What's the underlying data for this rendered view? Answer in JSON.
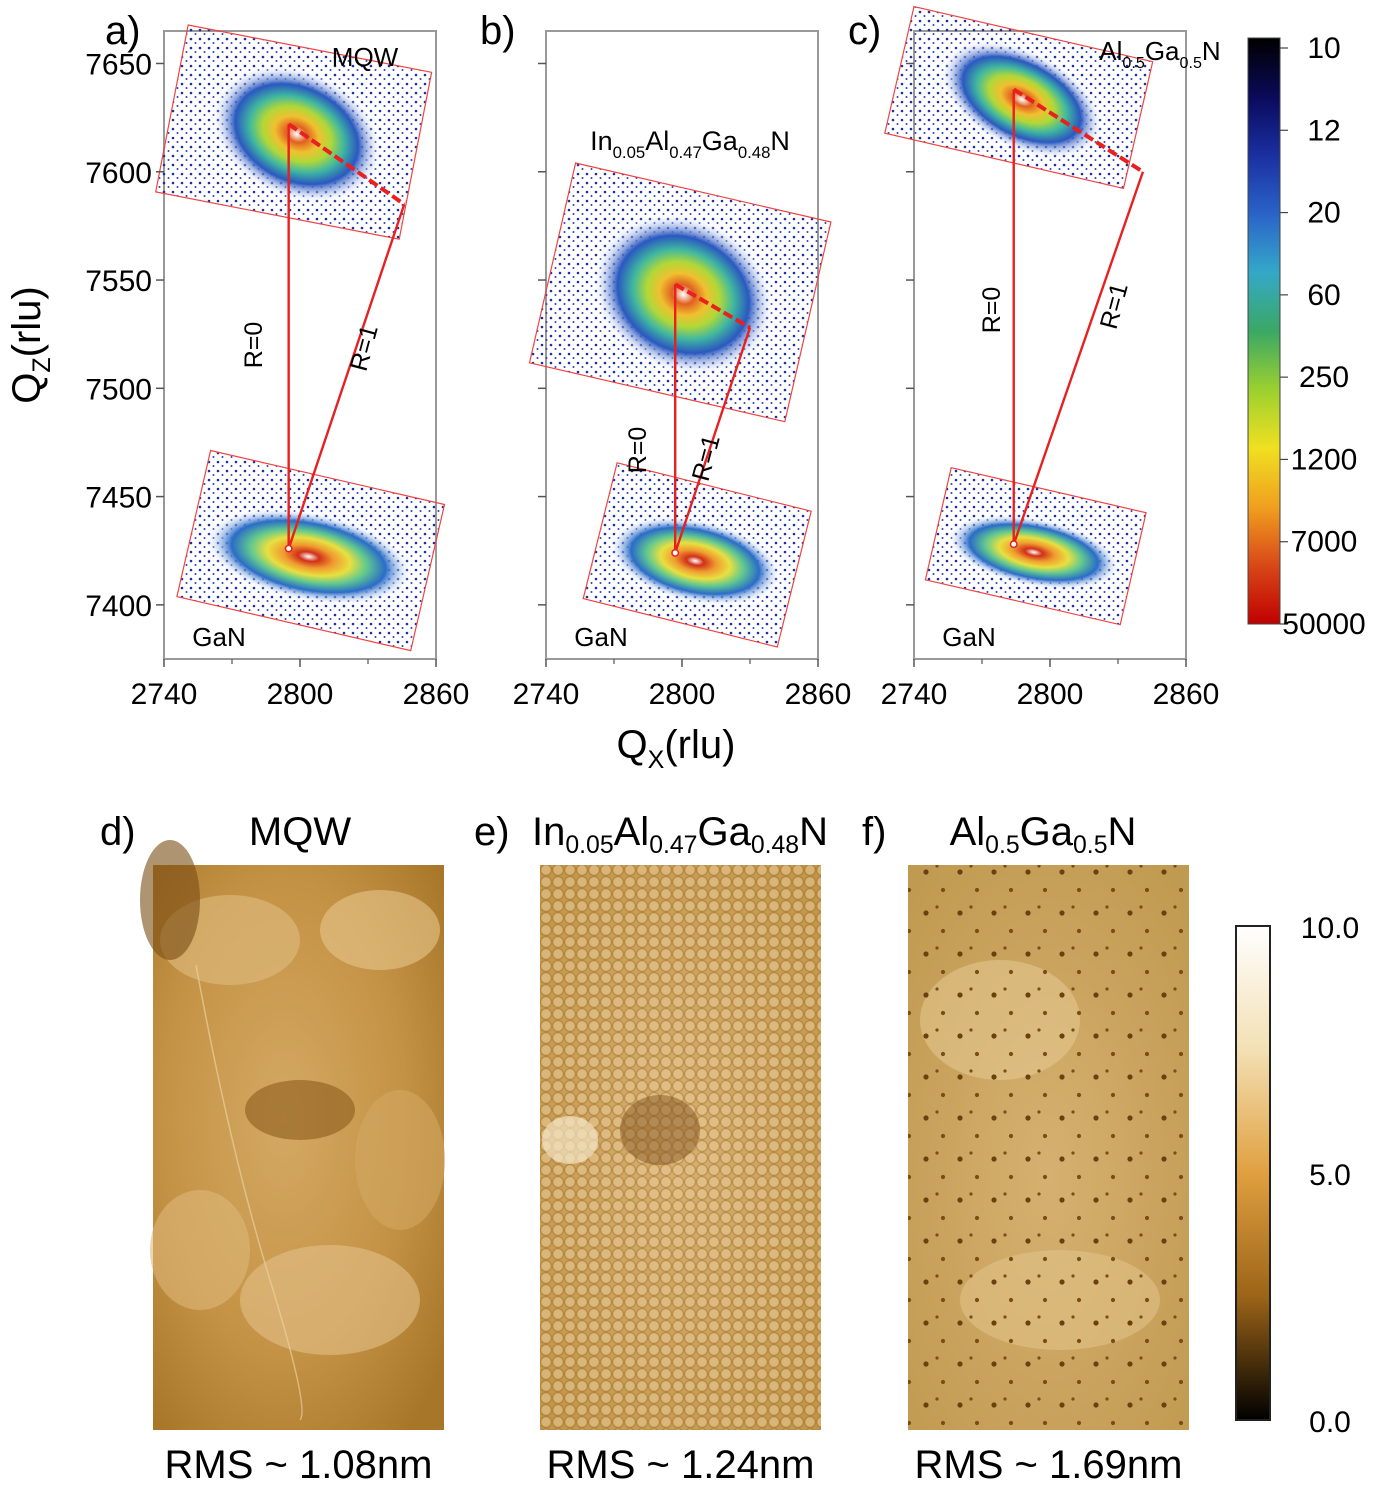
{
  "rsm": {
    "xlabel": {
      "main": "Q",
      "sub": "X",
      "rest": "(rlu)"
    },
    "ylabel": {
      "main": "Q",
      "sub": "Z",
      "rest": "(rlu)"
    },
    "xlim": [
      2740,
      2860
    ],
    "ylim": [
      7375,
      7665
    ],
    "xticks": [
      "2740",
      "2800",
      "2860"
    ],
    "yticks": [
      "7650",
      "7600",
      "7550",
      "7500",
      "7450",
      "7400"
    ],
    "r0_label": "R=0",
    "r1_label": "R=1",
    "substrate_label": "GaN",
    "panels": [
      {
        "id": "a",
        "letter": "a)",
        "layer": [
          {
            "t": "MQW",
            "s": false
          }
        ],
        "gan_peak": [
          2795,
          7426
        ],
        "layer_peak": [
          2795,
          7622
        ],
        "relaxed_point": [
          2846,
          7585
        ]
      },
      {
        "id": "b",
        "letter": "b)",
        "layer": [
          {
            "t": "In",
            "s": false
          },
          {
            "t": "0.05",
            "s": true
          },
          {
            "t": "Al",
            "s": false
          },
          {
            "t": "0.47",
            "s": true
          },
          {
            "t": "Ga",
            "s": false
          },
          {
            "t": "0.48",
            "s": true
          },
          {
            "t": "N",
            "s": false
          }
        ],
        "gan_peak": [
          2797,
          7424
        ],
        "layer_peak": [
          2797,
          7548
        ],
        "relaxed_point": [
          2830,
          7528
        ]
      },
      {
        "id": "c",
        "letter": "c)",
        "layer": [
          {
            "t": "Al",
            "s": false
          },
          {
            "t": "0.5",
            "s": true
          },
          {
            "t": "Ga",
            "s": false
          },
          {
            "t": "0.5",
            "s": true
          },
          {
            "t": "N",
            "s": false
          }
        ],
        "gan_peak": [
          2784,
          7428
        ],
        "layer_peak": [
          2784,
          7638
        ],
        "relaxed_point": [
          2841,
          7600
        ]
      }
    ],
    "colorbar": {
      "ticks": [
        "10",
        "12",
        "20",
        "60",
        "250",
        "1200",
        "7000",
        "50000"
      ],
      "colors": [
        "#000000",
        "#0a0a5a",
        "#1a2fa0",
        "#2a63c8",
        "#34a8c8",
        "#3aa864",
        "#9cd030",
        "#f0e020",
        "#f0a020",
        "#d84818",
        "#c00000"
      ]
    },
    "colors": {
      "relaxation_line": "#e82020",
      "frame": "#999999",
      "map_border": "#ee4444"
    }
  },
  "afm": {
    "panels": [
      {
        "id": "d",
        "letter": "d)",
        "title": [
          {
            "t": "MQW",
            "s": false
          }
        ],
        "rms": "RMS ~ 1.08nm",
        "texture": "smooth terraces"
      },
      {
        "id": "e",
        "letter": "e)",
        "title": [
          {
            "t": "In",
            "s": false
          },
          {
            "t": "0.05",
            "s": true
          },
          {
            "t": "Al",
            "s": false
          },
          {
            "t": "0.47",
            "s": true
          },
          {
            "t": "Ga",
            "s": false
          },
          {
            "t": "0.48",
            "s": true
          },
          {
            "t": "N",
            "s": false
          }
        ],
        "rms": "RMS ~ 1.24nm",
        "texture": "granular"
      },
      {
        "id": "f",
        "letter": "f)",
        "title": [
          {
            "t": "Al",
            "s": false
          },
          {
            "t": "0.5",
            "s": true
          },
          {
            "t": "Ga",
            "s": false
          },
          {
            "t": "0.5",
            "s": true
          },
          {
            "t": "N",
            "s": false
          }
        ],
        "rms": "RMS ~ 1.69nm",
        "texture": "pits"
      }
    ],
    "colorbar": {
      "ticks": [
        "10.0",
        "5.0",
        "0.0"
      ],
      "colors": [
        "#ffffff",
        "#f3e0b4",
        "#e0a040",
        "#9c6418",
        "#000000"
      ]
    }
  }
}
